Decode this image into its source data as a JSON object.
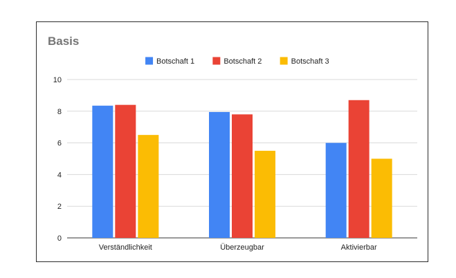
{
  "chart_data": {
    "type": "bar",
    "title": "Basis",
    "categories": [
      "Verständlichkeit",
      "Überzeugbar",
      "Aktivierbar"
    ],
    "series": [
      {
        "name": "Botschaft 1",
        "color": "#4285f4",
        "values": [
          8.35,
          7.95,
          6.0
        ]
      },
      {
        "name": "Botschaft 2",
        "color": "#ea4335",
        "values": [
          8.4,
          7.8,
          8.7
        ]
      },
      {
        "name": "Botschaft 3",
        "color": "#fbbc04",
        "values": [
          6.5,
          5.5,
          5.0
        ]
      }
    ],
    "ylim": [
      0,
      10
    ],
    "yticks": [
      "0",
      "2",
      "4",
      "6",
      "8",
      "10"
    ],
    "grid": true,
    "legend_position": "top"
  }
}
